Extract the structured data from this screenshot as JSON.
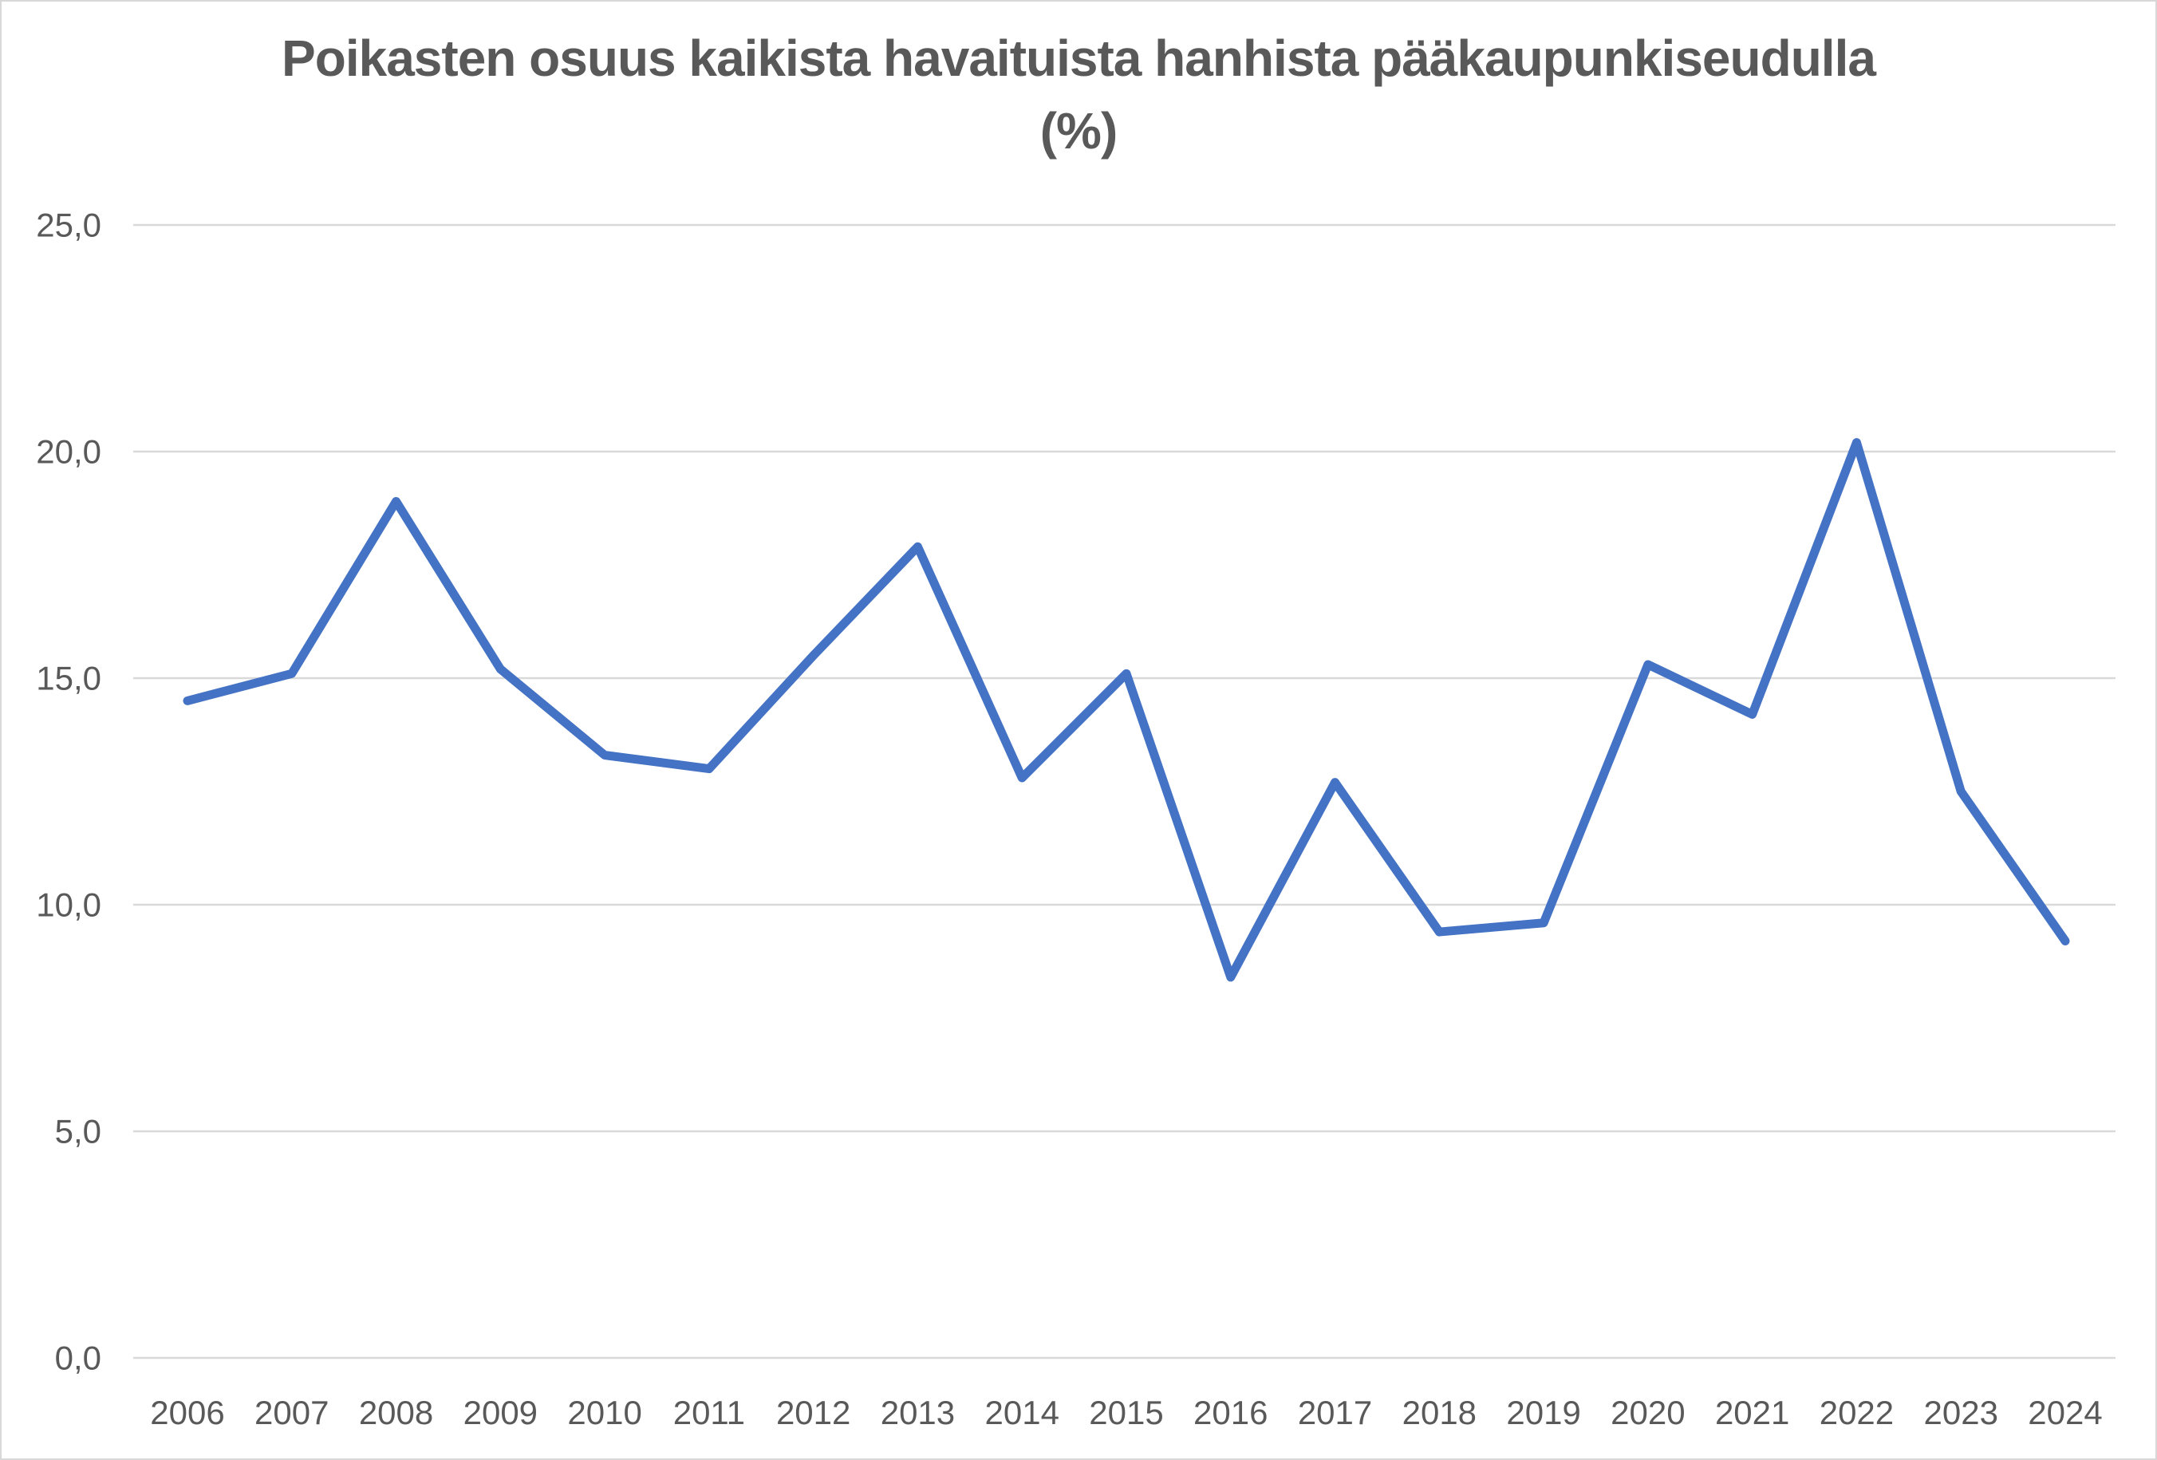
{
  "chart_data": {
    "type": "line",
    "title": "Poikasten osuus kaikista havaituista hanhista pääkaupunkiseudulla (%)",
    "title_lines": [
      "Poikasten osuus kaikista havaituista hanhista pääkaupunkiseudulla",
      "(%)"
    ],
    "categories": [
      "2006",
      "2007",
      "2008",
      "2009",
      "2010",
      "2011",
      "2012",
      "2013",
      "2014",
      "2015",
      "2016",
      "2017",
      "2018",
      "2019",
      "2020",
      "2021",
      "2022",
      "2023",
      "2024"
    ],
    "series": [
      {
        "name": "Poikasten osuus (%)",
        "values": [
          14.5,
          15.1,
          18.9,
          15.2,
          13.3,
          13.0,
          15.5,
          17.9,
          12.8,
          15.1,
          8.4,
          12.7,
          9.4,
          9.6,
          15.3,
          14.2,
          20.2,
          12.5,
          9.2
        ]
      }
    ],
    "xlabel": "",
    "ylabel": "",
    "ylim": [
      0,
      25
    ],
    "ytick_values": [
      0,
      5,
      10,
      15,
      20,
      25
    ],
    "ytick_labels": [
      "0,0",
      "5,0",
      "10,0",
      "15,0",
      "20,0",
      "25,0"
    ],
    "grid": true,
    "legend": "none",
    "colors": {
      "line": "#4472C4",
      "gridline": "#D9D9D9",
      "text": "#595959",
      "background": "#FFFFFF",
      "border": "#D8D8D8"
    }
  }
}
